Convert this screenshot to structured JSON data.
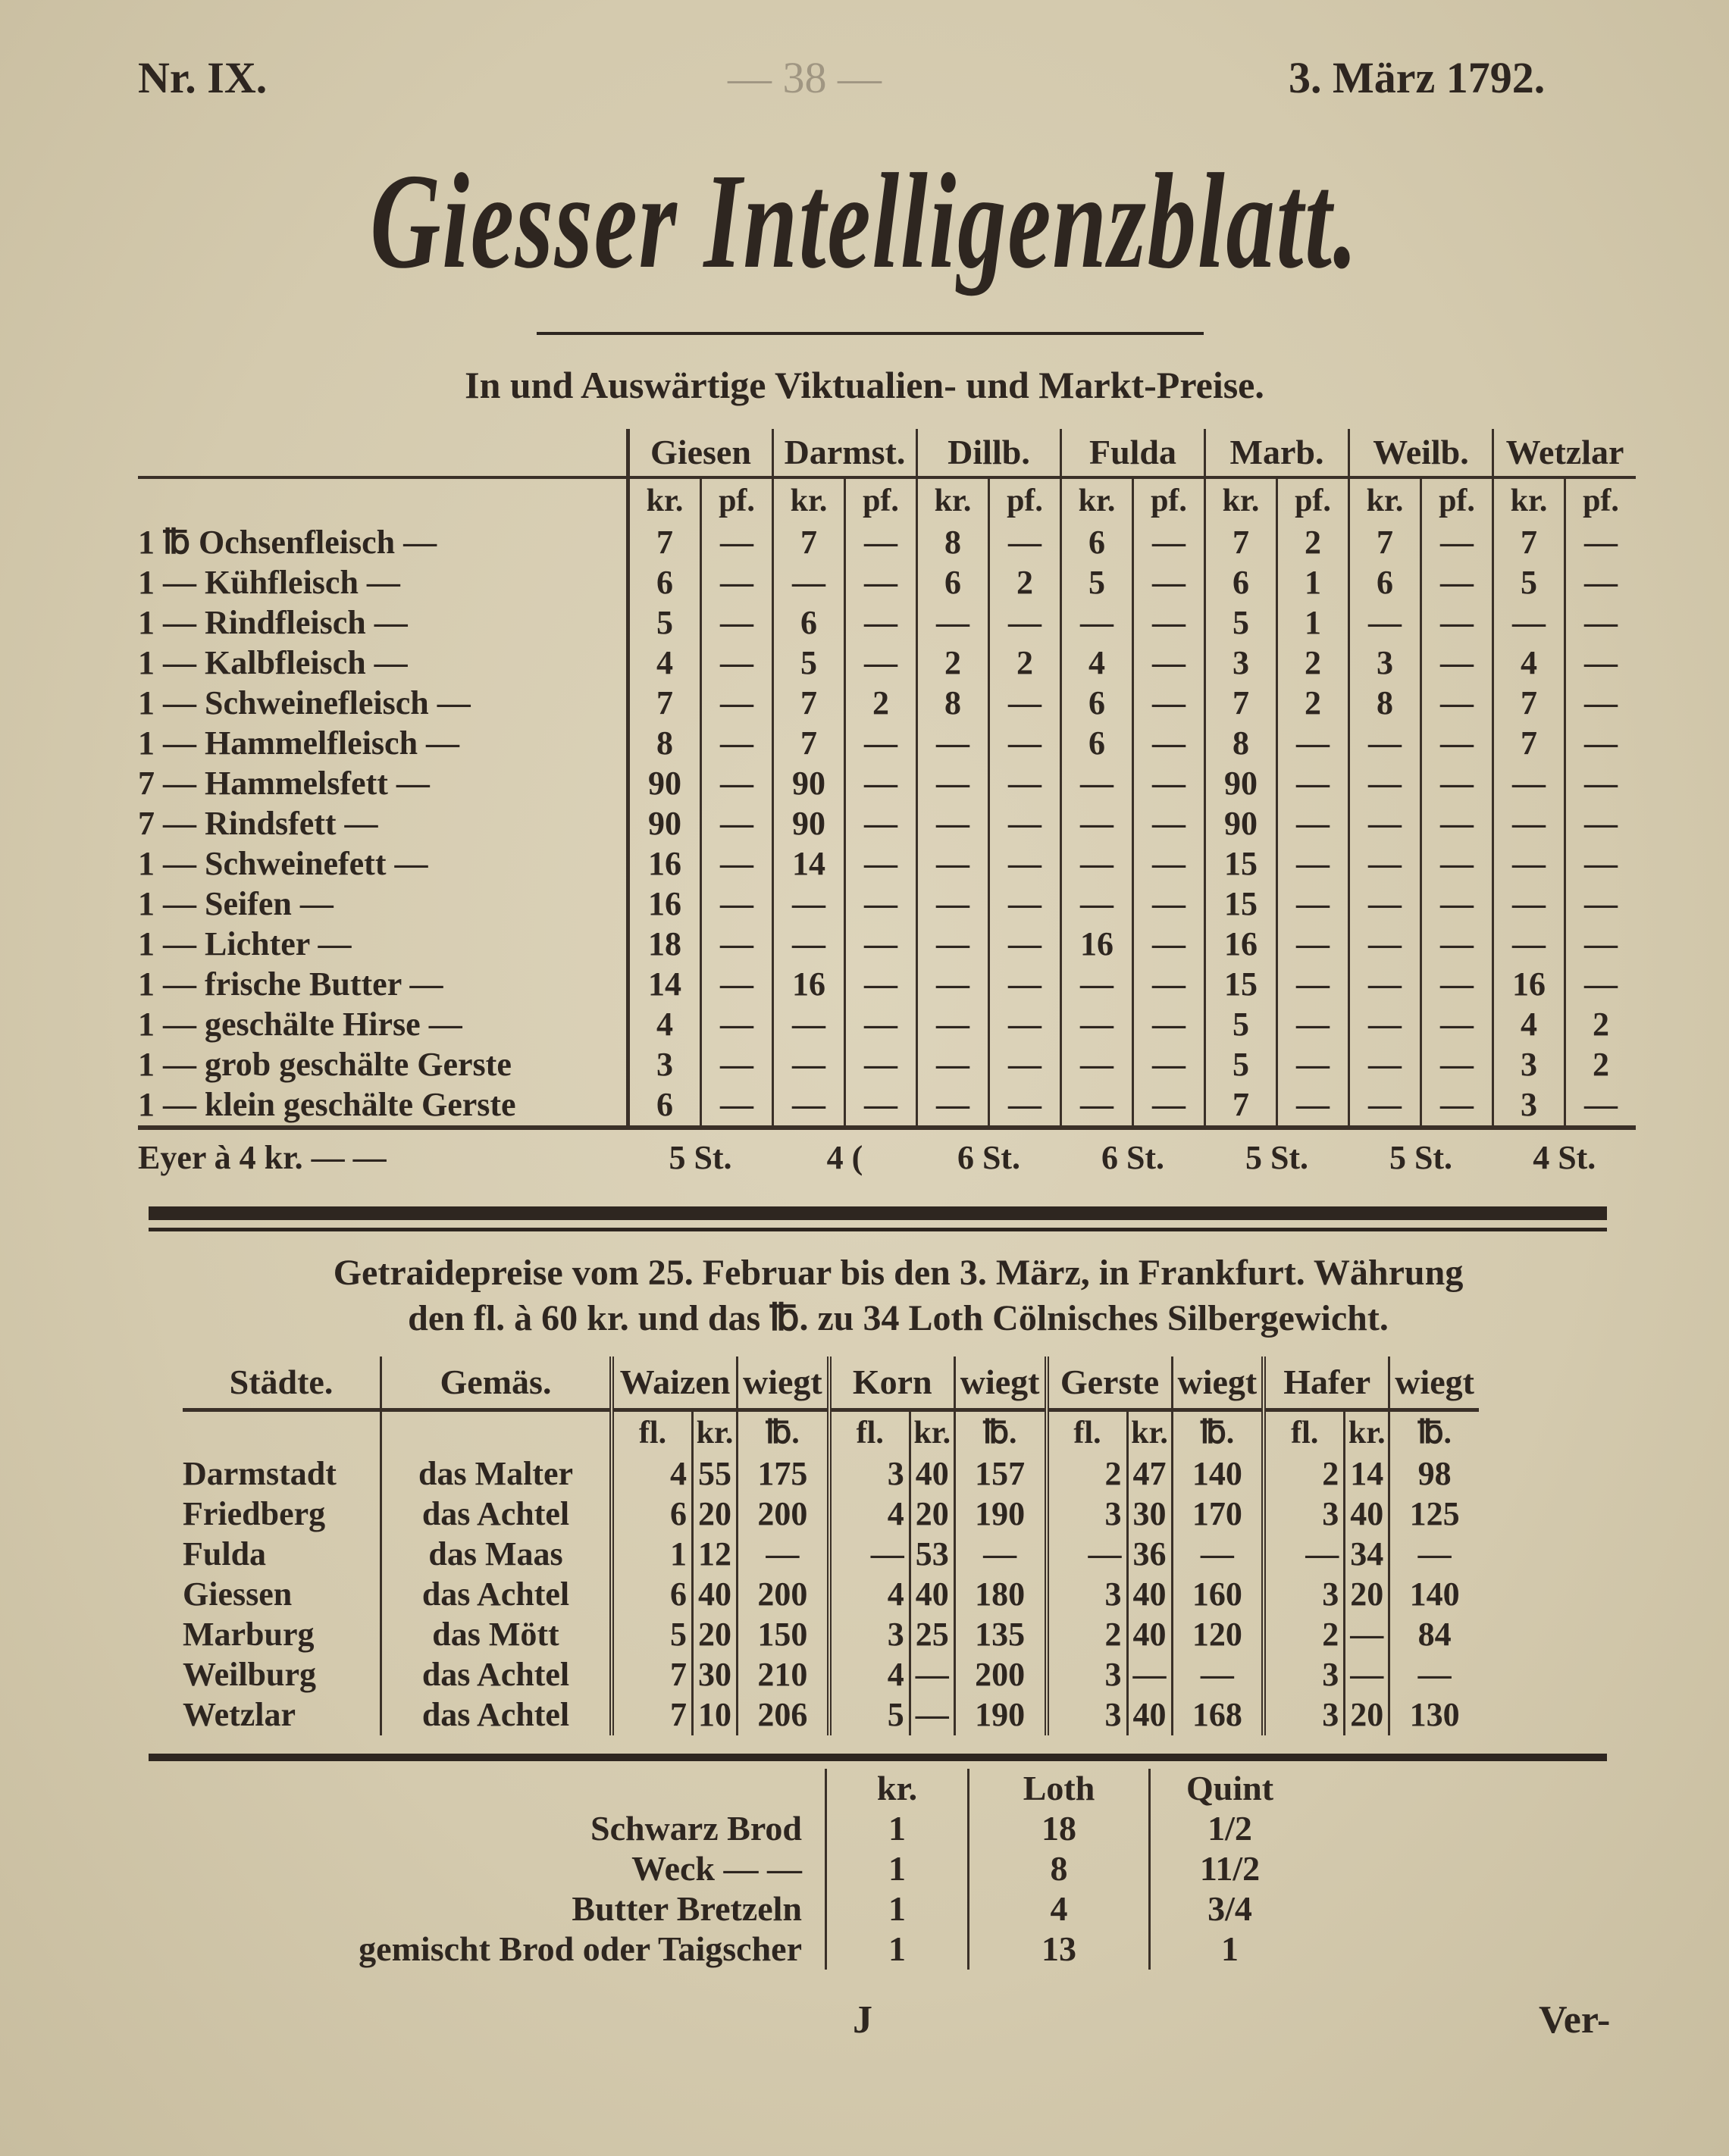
{
  "header": {
    "number": "Nr. IX.",
    "page_showthrough": "— 38 —",
    "date": "3. März 1792."
  },
  "title": "Giesser Intelligenzblatt.",
  "subtitle": "In und Auswärtige Viktualien- und Markt-Preise.",
  "market_table": {
    "cities": [
      "Giesen",
      "Darmst.",
      "Dillb.",
      "Fulda",
      "Marb.",
      "Weilb.",
      "Wetzlar"
    ],
    "units": [
      "kr.",
      "pf."
    ],
    "rows": [
      {
        "label": "1 ℔ Ochsenfleisch —",
        "values": [
          "7",
          "—",
          "7",
          "—",
          "8",
          "—",
          "6",
          "—",
          "7",
          "2",
          "7",
          "—",
          "7",
          "—"
        ]
      },
      {
        "label": "1 — Kühfleisch —",
        "values": [
          "6",
          "—",
          "—",
          "—",
          "6",
          "2",
          "5",
          "—",
          "6",
          "1",
          "6",
          "—",
          "5",
          "—"
        ]
      },
      {
        "label": "1 — Rindfleisch —",
        "values": [
          "5",
          "—",
          "6",
          "—",
          "—",
          "—",
          "—",
          "—",
          "5",
          "1",
          "—",
          "—",
          "—",
          "—"
        ]
      },
      {
        "label": "1 — Kalbfleisch —",
        "values": [
          "4",
          "—",
          "5",
          "—",
          "2",
          "2",
          "4",
          "—",
          "3",
          "2",
          "3",
          "—",
          "4",
          "—"
        ]
      },
      {
        "label": "1 — Schweinefleisch —",
        "values": [
          "7",
          "—",
          "7",
          "2",
          "8",
          "—",
          "6",
          "—",
          "7",
          "2",
          "8",
          "—",
          "7",
          "—"
        ]
      },
      {
        "label": "1 — Hammelfleisch —",
        "values": [
          "8",
          "—",
          "7",
          "—",
          "—",
          "—",
          "6",
          "—",
          "8",
          "—",
          "—",
          "—",
          "7",
          "—"
        ]
      },
      {
        "label": "7 — Hammelsfett —",
        "values": [
          "90",
          "—",
          "90",
          "—",
          "—",
          "—",
          "—",
          "—",
          "90",
          "—",
          "—",
          "—",
          "—",
          "—"
        ]
      },
      {
        "label": "7 — Rindsfett —",
        "values": [
          "90",
          "—",
          "90",
          "—",
          "—",
          "—",
          "—",
          "—",
          "90",
          "—",
          "—",
          "—",
          "—",
          "—"
        ]
      },
      {
        "label": "1 — Schweinefett —",
        "values": [
          "16",
          "—",
          "14",
          "—",
          "—",
          "—",
          "—",
          "—",
          "15",
          "—",
          "—",
          "—",
          "—",
          "—"
        ]
      },
      {
        "label": "1 — Seifen —",
        "values": [
          "16",
          "—",
          "—",
          "—",
          "—",
          "—",
          "—",
          "—",
          "15",
          "—",
          "—",
          "—",
          "—",
          "—"
        ]
      },
      {
        "label": "1 — Lichter —",
        "values": [
          "18",
          "—",
          "—",
          "—",
          "—",
          "—",
          "16",
          "—",
          "16",
          "—",
          "—",
          "—",
          "—",
          "—"
        ]
      },
      {
        "label": "1 — frische Butter —",
        "values": [
          "14",
          "—",
          "16",
          "—",
          "—",
          "—",
          "—",
          "—",
          "15",
          "—",
          "—",
          "—",
          "16",
          "—"
        ]
      },
      {
        "label": "1 — geschälte Hirse —",
        "values": [
          "4",
          "—",
          "—",
          "—",
          "—",
          "—",
          "—",
          "—",
          "5",
          "—",
          "—",
          "—",
          "4",
          "2"
        ]
      },
      {
        "label": "1 — grob geschälte Gerste",
        "values": [
          "3",
          "—",
          "—",
          "—",
          "—",
          "—",
          "—",
          "—",
          "5",
          "—",
          "—",
          "—",
          "3",
          "2"
        ]
      },
      {
        "label": "1 — klein geschälte Gerste",
        "values": [
          "6",
          "—",
          "—",
          "—",
          "—",
          "—",
          "—",
          "—",
          "7",
          "—",
          "—",
          "—",
          "3",
          "—"
        ]
      }
    ],
    "eggs": {
      "label": "Eyer à 4 kr. — —",
      "values": [
        "5 St.",
        "4 (",
        "6 St.",
        "6 St.",
        "5 St.",
        "5 St.",
        "4 St."
      ]
    }
  },
  "grain": {
    "heading_line1": "Getraidepreise vom 25. Februar bis den 3. März, in Frankfurt. Währung",
    "heading_line2": "den fl. à 60 kr. und das ℔. zu 34 Loth Cölnisches Silbergewicht.",
    "headers": [
      "Städte.",
      "Gemäs.",
      "Waizen",
      "wiegt",
      "Korn",
      "wiegt",
      "Gerste",
      "wiegt",
      "Hafer",
      "wiegt"
    ],
    "units": [
      "fl.",
      "kr.",
      "℔."
    ],
    "rows": [
      {
        "city": "Darmstadt",
        "measure": "das Malter",
        "values": [
          "4",
          "55",
          "175",
          "3",
          "40",
          "157",
          "2",
          "47",
          "140",
          "2",
          "14",
          "98"
        ]
      },
      {
        "city": "Friedberg",
        "measure": "das Achtel",
        "values": [
          "6",
          "20",
          "200",
          "4",
          "20",
          "190",
          "3",
          "30",
          "170",
          "3",
          "40",
          "125"
        ]
      },
      {
        "city": "Fulda",
        "measure": "das Maas",
        "values": [
          "1",
          "12",
          "—",
          "—",
          "53",
          "—",
          "—",
          "36",
          "—",
          "—",
          "34",
          "—"
        ]
      },
      {
        "city": "Giessen",
        "measure": "das Achtel",
        "values": [
          "6",
          "40",
          "200",
          "4",
          "40",
          "180",
          "3",
          "40",
          "160",
          "3",
          "20",
          "140"
        ]
      },
      {
        "city": "Marburg",
        "measure": "das Mött",
        "values": [
          "5",
          "20",
          "150",
          "3",
          "25",
          "135",
          "2",
          "40",
          "120",
          "2",
          "—",
          "84"
        ]
      },
      {
        "city": "Weilburg",
        "measure": "das Achtel",
        "values": [
          "7",
          "30",
          "210",
          "4",
          "—",
          "200",
          "3",
          "—",
          "—",
          "3",
          "—",
          "—"
        ]
      },
      {
        "city": "Wetzlar",
        "measure": "das Achtel",
        "values": [
          "7",
          "10",
          "206",
          "5",
          "—",
          "190",
          "3",
          "40",
          "168",
          "3",
          "20",
          "130"
        ]
      }
    ]
  },
  "bread": {
    "headers": [
      "kr.",
      "Loth",
      "Quint"
    ],
    "rows": [
      {
        "label": "Schwarz Brod",
        "values": [
          "1",
          "18",
          "1/2"
        ]
      },
      {
        "label": "Weck — —",
        "values": [
          "1",
          "8",
          "11/2"
        ]
      },
      {
        "label": "Butter Bretzeln",
        "values": [
          "1",
          "4",
          "3/4"
        ]
      },
      {
        "label": "gemischt Brod oder Taigscher",
        "values": [
          "1",
          "13",
          "1"
        ]
      }
    ]
  },
  "footer": {
    "signature": "J",
    "catchword": "Ver-"
  }
}
